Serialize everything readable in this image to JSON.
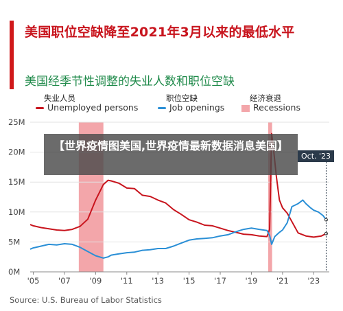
{
  "page": {
    "title": "美国职位空缺降至2021年3月以来的最低水平",
    "subtitle": "美国经季节性调整的失业人数和职位空缺",
    "overlay_text": "【世界疫情图美国,世界疫情最新数据消息美国】",
    "source": "Source: U.S. Bureau of Labor Statistics",
    "callout": "Oct. '23"
  },
  "colors": {
    "unemployed": "#c8141d",
    "openings": "#2a8fd6",
    "recession": "#f3a6aa",
    "title": "#c8141d",
    "subtitle": "#1f8a4a"
  },
  "chart_data": {
    "type": "line",
    "legend": [
      {
        "key": "unemployed",
        "cn": "失业人员",
        "label": "Unemployed persons",
        "style": "line"
      },
      {
        "key": "openings",
        "cn": "职位空缺",
        "label": "Job openings",
        "style": "line"
      },
      {
        "key": "recession",
        "cn": "经济衰退",
        "label": "Recessions",
        "style": "box"
      }
    ],
    "x_range": [
      2004.8,
      2024.0
    ],
    "y_range": [
      0,
      25
    ],
    "y_ticks": [
      0,
      5,
      10,
      15,
      20,
      25
    ],
    "y_tick_labels": [
      "0M",
      "5M",
      "10M",
      "15M",
      "20M",
      "25M"
    ],
    "x_ticks": [
      2005,
      2007,
      2009,
      2011,
      2013,
      2015,
      2017,
      2019,
      2021,
      2023
    ],
    "x_tick_labels": [
      "'05",
      "'07",
      "'09",
      "'11",
      "'13",
      "'15",
      "'17",
      "'19",
      "'21",
      "'23"
    ],
    "grid": true,
    "legend_position": "top-left",
    "recessions": [
      [
        2007.92,
        2009.5
      ],
      [
        2020.08,
        2020.33
      ]
    ],
    "series": [
      {
        "key": "unemployed",
        "name": "Unemployed persons",
        "x": [
          2004.8,
          2005.0,
          2005.5,
          2006.0,
          2006.5,
          2007.0,
          2007.5,
          2008.0,
          2008.5,
          2009.0,
          2009.5,
          2009.8,
          2010.0,
          2010.5,
          2011.0,
          2011.5,
          2012.0,
          2012.5,
          2013.0,
          2013.5,
          2014.0,
          2014.5,
          2015.0,
          2015.5,
          2016.0,
          2016.5,
          2017.0,
          2017.5,
          2018.0,
          2018.5,
          2019.0,
          2019.5,
          2020.0,
          2020.17,
          2020.3,
          2020.4,
          2020.6,
          2020.8,
          2021.0,
          2021.3,
          2021.6,
          2022.0,
          2022.5,
          2023.0,
          2023.5,
          2023.8
        ],
        "values": [
          7.9,
          7.7,
          7.4,
          7.2,
          7.0,
          6.9,
          7.1,
          7.6,
          8.8,
          12.0,
          14.6,
          15.3,
          15.2,
          14.8,
          14.0,
          13.9,
          12.8,
          12.6,
          12.0,
          11.5,
          10.4,
          9.6,
          8.7,
          8.3,
          7.8,
          7.7,
          7.3,
          6.9,
          6.6,
          6.3,
          6.2,
          6.0,
          5.9,
          7.1,
          23.1,
          21.0,
          16.0,
          12.0,
          10.7,
          9.8,
          8.4,
          6.5,
          6.0,
          5.8,
          6.0,
          6.4
        ]
      },
      {
        "key": "openings",
        "name": "Job openings",
        "x": [
          2004.8,
          2005.0,
          2005.5,
          2006.0,
          2006.5,
          2007.0,
          2007.5,
          2008.0,
          2008.5,
          2009.0,
          2009.5,
          2009.8,
          2010.0,
          2010.5,
          2011.0,
          2011.5,
          2012.0,
          2012.5,
          2013.0,
          2013.5,
          2014.0,
          2014.5,
          2015.0,
          2015.5,
          2016.0,
          2016.5,
          2017.0,
          2017.5,
          2018.0,
          2018.5,
          2019.0,
          2019.5,
          2020.0,
          2020.17,
          2020.3,
          2020.5,
          2020.8,
          2021.0,
          2021.3,
          2021.6,
          2022.0,
          2022.3,
          2022.5,
          2022.8,
          2023.0,
          2023.3,
          2023.6,
          2023.8
        ],
        "values": [
          3.8,
          4.0,
          4.3,
          4.6,
          4.5,
          4.7,
          4.6,
          4.1,
          3.4,
          2.7,
          2.3,
          2.5,
          2.8,
          3.0,
          3.2,
          3.3,
          3.6,
          3.7,
          3.9,
          3.9,
          4.3,
          4.8,
          5.3,
          5.5,
          5.6,
          5.7,
          6.0,
          6.2,
          6.7,
          7.1,
          7.3,
          7.1,
          6.9,
          6.1,
          4.6,
          5.9,
          6.6,
          7.0,
          8.2,
          10.9,
          11.4,
          12.0,
          11.4,
          10.7,
          10.3,
          10.0,
          9.4,
          8.7
        ]
      }
    ]
  }
}
